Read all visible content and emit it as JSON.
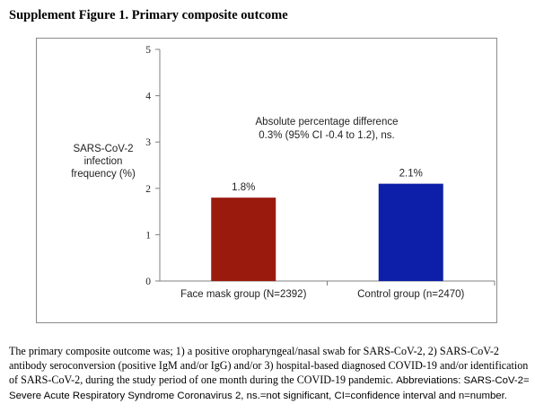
{
  "figure": {
    "title": "Supplement Figure 1. Primary composite outcome"
  },
  "chart_data": {
    "type": "bar",
    "categories": [
      "Face mask group (N=2392)",
      "Control group (n=2470)"
    ],
    "values": [
      1.8,
      2.1
    ],
    "value_labels": [
      "1.8%",
      "2.1%"
    ],
    "bar_colors": [
      "#9b1a0e",
      "#0d1fa8"
    ],
    "ylabel_lines": [
      "SARS-CoV-2",
      "infection",
      "frequency (%)"
    ],
    "ylim": [
      0,
      5
    ],
    "y_ticks": [
      0,
      1,
      2,
      3,
      4,
      5
    ],
    "annotation_lines": [
      "Absolute percentage difference",
      "0.3% (95% CI -0.4 to 1.2), ns."
    ],
    "grid": false,
    "legend": "none"
  },
  "caption": {
    "line1": "The primary composite outcome was; 1) a positive oropharyngeal/nasal swab for SARS-CoV-2, 2) SARS-CoV-2",
    "line2": "antibody seroconversion (positive IgM and/or IgG) and/or 3) hospital-based diagnosed COVID-19 and/or identification",
    "line3_serif": "of SARS-CoV-2, during the study period of one month during the COVID-19 pandemic. ",
    "line3_sans": "Abbreviations: SARS-CoV-2=",
    "line4": "Severe Acute Respiratory Syndrome Coronavirus 2, ns.=not significant, CI=confidence interval and n=number."
  }
}
